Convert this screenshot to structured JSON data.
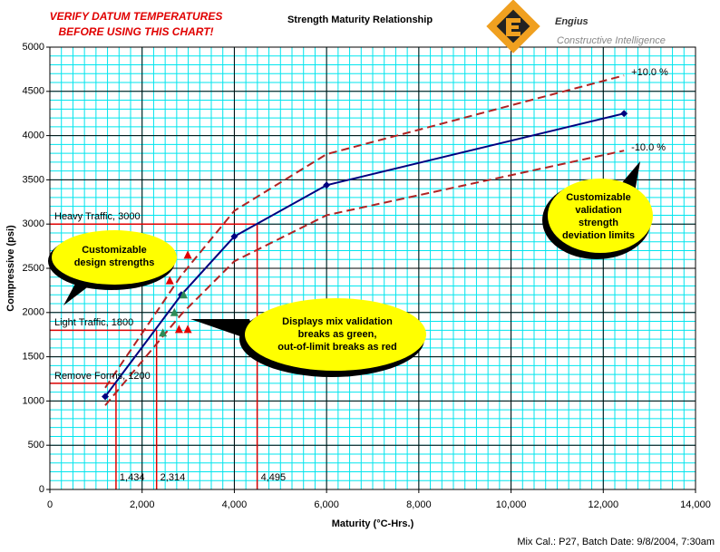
{
  "chart_data": {
    "type": "line",
    "title": "Strength Maturity Relationship",
    "warning": [
      "VERIFY DATUM TEMPERATURES",
      "BEFORE USING THIS CHART!"
    ],
    "brand": {
      "name": "Engius",
      "tagline": "Constructive Intelligence"
    },
    "x_label": "Maturity (°C-Hrs.)",
    "y_label": "Compressive (psi)",
    "footer": "Mix Cal.: P27, Batch Date: 9/8/2004, 7:30am",
    "xlim": [
      0,
      14000
    ],
    "ylim": [
      0,
      5000
    ],
    "xticks": [
      0,
      {
        "value": 2000,
        "label": "2,000"
      },
      {
        "value": 4000,
        "label": "4,000"
      },
      {
        "value": 6000,
        "label": "6,000"
      },
      {
        "value": 8000,
        "label": "8,000"
      },
      {
        "value": 10000,
        "label": "10,000"
      },
      {
        "value": 12000,
        "label": "12,000"
      },
      {
        "value": 14000,
        "label": "14,000"
      }
    ],
    "yticks": [
      0,
      500,
      1000,
      1500,
      2000,
      2500,
      3000,
      3500,
      4000,
      4500,
      5000
    ],
    "grid": true,
    "grid_color": "#00e5ee",
    "minor_grid_step": {
      "x": 250,
      "y": 100
    },
    "series": [
      {
        "color": "#000080",
        "style": "solid",
        "marker": "diamond",
        "x": [
          1200,
          2850,
          4000,
          6000,
          12450
        ],
        "values": [
          1050,
          2200,
          2860,
          3440,
          4250
        ]
      },
      {
        "name": "+10.0 %",
        "color": "#b22222",
        "style": "dashed",
        "marker": "none",
        "x": [
          1200,
          2850,
          4000,
          6000,
          12450
        ],
        "values": [
          1150,
          2420,
          3150,
          3790,
          4680
        ]
      },
      {
        "name": "-10.0 %",
        "color": "#b22222",
        "style": "dashed",
        "marker": "none",
        "x": [
          1200,
          2850,
          4000,
          6000,
          12450
        ],
        "values": [
          950,
          1980,
          2580,
          3100,
          3830
        ]
      },
      {
        "color": "#2e8b57",
        "style": "none",
        "marker": "triangle",
        "x": [
          2450,
          2700,
          2900
        ],
        "values": [
          1770,
          2000,
          2200
        ]
      },
      {
        "color": "#e00000",
        "style": "none",
        "marker": "triangle",
        "x": [
          2600,
          2990,
          2800,
          2990
        ],
        "values": [
          2360,
          2650,
          1810,
          1810
        ]
      }
    ],
    "reference_lines": [
      {
        "label": "Heavy Traffic, 3000",
        "strength": 3000,
        "maturity": 4495,
        "maturity_label": "4,495"
      },
      {
        "label": "Light Traffic, 1800",
        "strength": 1800,
        "maturity": 2314,
        "maturity_label": "2,314"
      },
      {
        "label": "Remove Forms, 1200",
        "strength": 1200,
        "maturity": 1434,
        "maturity_label": "1,434"
      }
    ],
    "callouts": [
      {
        "lines": [
          "Customizable",
          "design strengths"
        ]
      },
      {
        "lines": [
          "Displays mix validation",
          "breaks as green,",
          "out-of-limit breaks as red"
        ]
      },
      {
        "lines": [
          "Customizable",
          "validation",
          "strength",
          "deviation limits"
        ]
      }
    ]
  }
}
